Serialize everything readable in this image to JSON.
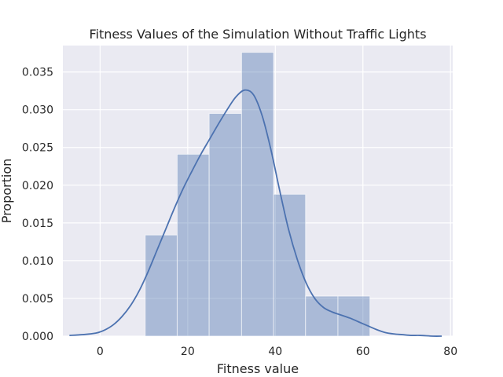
{
  "chart_data": {
    "type": "bar",
    "title": "Fitness Values of the Simulation Without Traffic Lights",
    "xlabel": "Fitness value",
    "ylabel": "Proportion",
    "xlim": [
      -8.5,
      80.5
    ],
    "ylim": [
      0,
      0.0385
    ],
    "x_ticks": [
      0,
      20,
      40,
      60,
      80
    ],
    "x_tick_labels": [
      "0",
      "20",
      "40",
      "60",
      "80"
    ],
    "y_ticks": [
      0,
      0.005,
      0.01,
      0.015,
      0.02,
      0.025,
      0.03,
      0.035
    ],
    "y_tick_labels": [
      "0.000",
      "0.005",
      "0.010",
      "0.015",
      "0.020",
      "0.025",
      "0.030",
      "0.035"
    ],
    "grid": true,
    "histogram": {
      "bin_edges": [
        10.3,
        17.6,
        24.9,
        32.3,
        39.6,
        46.9,
        54.3,
        61.6
      ],
      "values": [
        0.0134,
        0.0241,
        0.0295,
        0.0376,
        0.0188,
        0.0053,
        0.0053
      ],
      "color": "#4c72b0"
    },
    "kde": {
      "x": [
        -7,
        -4,
        -1,
        1,
        3,
        5,
        7,
        9,
        11,
        13,
        15,
        17,
        19,
        21,
        23,
        25,
        27,
        29,
        31,
        33,
        35,
        37,
        39,
        41,
        43,
        45,
        47,
        49,
        51,
        53,
        55,
        57,
        59,
        61,
        63,
        65,
        67,
        69,
        71,
        73,
        76,
        78
      ],
      "y": [
        0.0001,
        0.0002,
        0.0004,
        0.0008,
        0.0015,
        0.0026,
        0.0041,
        0.0061,
        0.0086,
        0.0114,
        0.0142,
        0.017,
        0.0196,
        0.0219,
        0.0241,
        0.0261,
        0.0281,
        0.03,
        0.0317,
        0.0326,
        0.032,
        0.0292,
        0.0247,
        0.0193,
        0.0142,
        0.0102,
        0.0071,
        0.005,
        0.0038,
        0.0032,
        0.0028,
        0.0024,
        0.0019,
        0.0014,
        0.0009,
        0.0005,
        0.0003,
        0.0002,
        0.0001,
        0.0001,
        0.0,
        0.0
      ],
      "color": "#4c72b0"
    },
    "background": "#eaeaf2"
  }
}
